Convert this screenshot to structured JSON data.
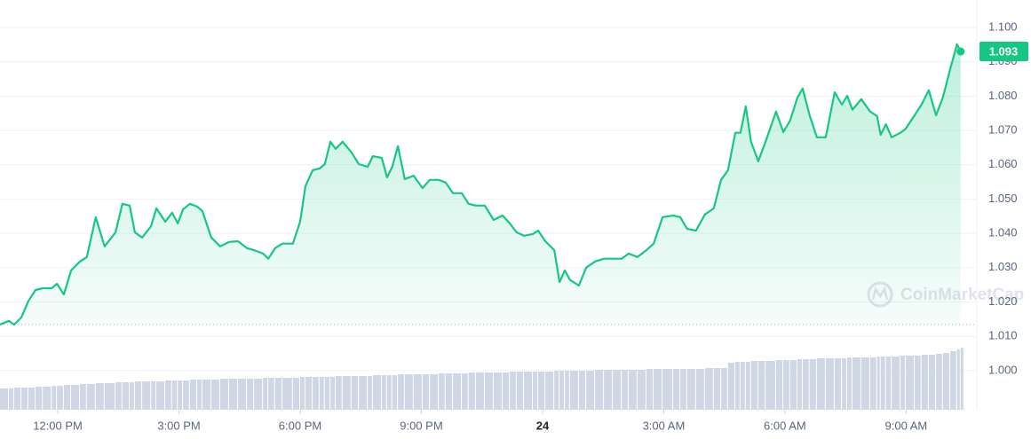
{
  "chart_data": {
    "type": "line",
    "x": [
      10.57,
      10.79,
      10.92,
      11.1,
      11.27,
      11.45,
      11.63,
      11.85,
      11.98,
      12.15,
      12.33,
      12.55,
      12.72,
      12.94,
      13.16,
      13.43,
      13.6,
      13.78,
      13.91,
      14.09,
      14.31,
      14.44,
      14.66,
      14.83,
      14.97,
      15.1,
      15.27,
      15.45,
      15.58,
      15.8,
      16.02,
      16.24,
      16.46,
      16.68,
      16.86,
      17.08,
      17.21,
      17.38,
      17.56,
      17.82,
      18.0,
      18.13,
      18.31,
      18.48,
      18.61,
      18.75,
      18.88,
      19.05,
      19.27,
      19.45,
      19.67,
      19.8,
      20.02,
      20.15,
      20.28,
      20.42,
      20.59,
      20.81,
      21.03,
      21.21,
      21.43,
      21.6,
      21.78,
      22.0,
      22.17,
      22.35,
      22.57,
      22.79,
      23.01,
      23.19,
      23.36,
      23.54,
      23.76,
      23.89,
      24.07,
      24.29,
      24.42,
      24.55,
      24.68,
      24.9,
      25.08,
      25.3,
      25.52,
      25.74,
      25.96,
      26.13,
      26.35,
      26.57,
      26.75,
      26.97,
      27.23,
      27.41,
      27.58,
      27.8,
      28.02,
      28.24,
      28.42,
      28.59,
      28.77,
      28.9,
      29.03,
      29.16,
      29.34,
      29.52,
      29.78,
      29.96,
      30.13,
      30.31,
      30.44,
      30.61,
      30.79,
      31.01,
      31.23,
      31.41,
      31.54,
      31.67,
      31.89,
      32.11,
      32.28,
      32.37,
      32.5,
      32.64,
      32.86,
      32.99,
      33.21,
      33.38,
      33.56,
      33.74,
      33.91,
      34.09,
      34.26,
      34.35
    ],
    "values": [
      1.0134,
      1.0145,
      1.0134,
      1.0155,
      1.0202,
      1.0235,
      1.024,
      1.024,
      1.0253,
      1.0222,
      1.0292,
      1.0318,
      1.0331,
      1.0447,
      1.0362,
      1.0403,
      1.0486,
      1.0481,
      1.0403,
      1.0388,
      1.0421,
      1.0473,
      1.0434,
      1.046,
      1.0429,
      1.047,
      1.0486,
      1.0478,
      1.0465,
      1.0388,
      1.0362,
      1.0375,
      1.0377,
      1.0357,
      1.0351,
      1.0341,
      1.0326,
      1.0357,
      1.037,
      1.037,
      1.0434,
      1.0537,
      1.0584,
      1.0589,
      1.0602,
      1.0667,
      1.0646,
      1.0667,
      1.0636,
      1.0602,
      1.0594,
      1.0625,
      1.062,
      1.0563,
      1.0594,
      1.0654,
      1.0558,
      1.0568,
      1.0532,
      1.0556,
      1.0556,
      1.0548,
      1.0517,
      1.0517,
      1.0486,
      1.0481,
      1.0481,
      1.0439,
      1.0452,
      1.0429,
      1.0403,
      1.0393,
      1.0398,
      1.0408,
      1.0377,
      1.0351,
      1.0258,
      1.0292,
      1.0264,
      1.0248,
      1.03,
      1.0318,
      1.0326,
      1.0326,
      1.0326,
      1.0341,
      1.0331,
      1.0351,
      1.037,
      1.0447,
      1.0452,
      1.0447,
      1.0413,
      1.0408,
      1.0455,
      1.0473,
      1.0556,
      1.0584,
      1.0693,
      1.0693,
      1.077,
      1.0667,
      1.061,
      1.0667,
      1.0755,
      1.0695,
      1.0729,
      1.0796,
      1.0822,
      1.0744,
      1.068,
      1.068,
      1.0811,
      1.0775,
      1.0801,
      1.076,
      1.0791,
      1.0755,
      1.0742,
      1.0687,
      1.0718,
      1.068,
      1.0693,
      1.0705,
      1.0744,
      1.0775,
      1.0817,
      1.0744,
      1.0796,
      1.0879,
      1.0951,
      1.093
    ],
    "color": "#16c784",
    "volume": {
      "color": "#cfd6e4",
      "values": [
        24,
        24,
        25,
        25,
        25,
        26,
        26,
        27,
        27,
        28,
        28,
        29,
        29,
        30,
        30,
        31,
        31,
        31,
        32,
        32,
        32,
        32,
        33,
        33,
        33,
        33,
        34,
        34,
        34,
        34,
        35,
        35,
        35,
        35,
        35,
        36,
        36,
        36,
        36,
        36,
        37,
        37,
        37,
        37,
        37,
        37,
        38,
        38,
        38,
        38,
        38,
        39,
        39,
        39,
        39,
        40,
        40,
        40,
        40,
        40,
        41,
        41,
        41,
        41,
        42,
        42,
        42,
        42,
        42,
        43,
        43,
        43,
        43,
        43,
        43,
        44,
        44,
        44,
        44,
        44,
        44,
        45,
        45,
        45,
        45,
        45,
        45,
        46,
        46,
        46,
        46,
        46,
        46,
        46,
        47,
        47,
        47,
        53,
        54,
        54,
        54,
        55,
        55,
        55,
        56,
        56,
        56,
        57,
        57,
        57,
        58,
        58,
        58,
        58,
        59,
        59,
        59,
        59,
        60,
        60,
        60,
        60,
        61,
        61,
        61,
        62,
        62,
        63,
        64,
        66,
        68,
        70
      ]
    },
    "last_price": 1.093,
    "watermark": "CoinMarketCap",
    "xlim": [
      10.57,
      34.75
    ],
    "xticks": [
      {
        "value": 12,
        "label": "12:00 PM"
      },
      {
        "value": 15,
        "label": "3:00 PM"
      },
      {
        "value": 18,
        "label": "6:00 PM"
      },
      {
        "value": 21,
        "label": "9:00 PM"
      },
      24,
      {
        "value": 27,
        "label": "3:00 AM"
      },
      {
        "value": 30,
        "label": "6:00 AM"
      },
      {
        "value": 33,
        "label": "9:00 AM"
      }
    ],
    "ylim": [
      0.9886,
      1.108
    ],
    "yticks": [
      {
        "value": 1.1,
        "label": "1.100"
      },
      {
        "value": 1.09,
        "label": "1.090"
      },
      {
        "value": 1.08,
        "label": "1.080"
      },
      {
        "value": 1.07,
        "label": "1.070"
      },
      {
        "value": 1.06,
        "label": "1.060"
      },
      {
        "value": 1.05,
        "label": "1.050"
      },
      {
        "value": 1.04,
        "label": "1.040"
      },
      {
        "value": 1.03,
        "label": "1.030"
      },
      {
        "value": 1.02,
        "label": "1.020"
      },
      {
        "value": 1.01,
        "label": "1.010"
      },
      {
        "value": 1.0,
        "label": "1.000"
      }
    ],
    "grid": true
  }
}
